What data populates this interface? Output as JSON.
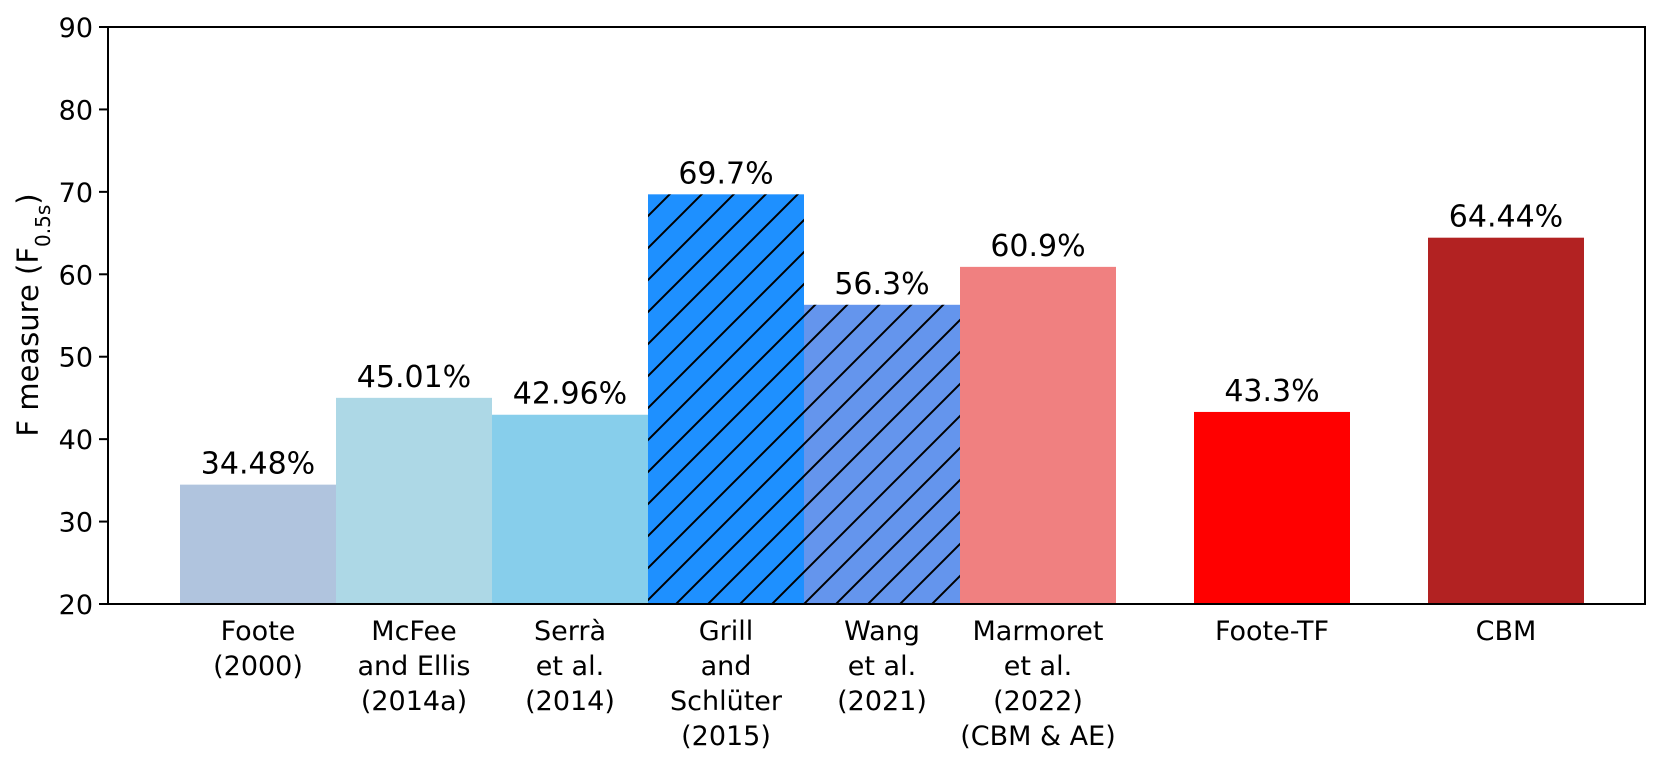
{
  "chart_data": {
    "type": "bar",
    "ylabel": "F measure (F",
    "ylabel_sub": "0.5s",
    "ylabel_close": ")",
    "ylim": [
      20,
      90
    ],
    "yticks": [
      20,
      30,
      40,
      50,
      60,
      70,
      80,
      90
    ],
    "grid": false,
    "bars": [
      {
        "lines": [
          "Foote",
          "(2000)"
        ],
        "value": 34.48,
        "label": "34.48%",
        "color": "#B0C4DE",
        "hatch": false,
        "slot": 0
      },
      {
        "lines": [
          "McFee",
          "and Ellis",
          "(2014a)"
        ],
        "value": 45.01,
        "label": "45.01%",
        "color": "#ADD8E6",
        "hatch": false,
        "slot": 1
      },
      {
        "lines": [
          "Serrà",
          "et al.",
          "(2014)"
        ],
        "value": 42.96,
        "label": "42.96%",
        "color": "#87CEEB",
        "hatch": false,
        "slot": 2
      },
      {
        "lines": [
          "Grill",
          "and",
          "Schlüter",
          "(2015)"
        ],
        "value": 69.7,
        "label": "69.7%",
        "color": "#1E90FF",
        "hatch": true,
        "slot": 3
      },
      {
        "lines": [
          "Wang",
          "et al.",
          "(2021)"
        ],
        "value": 56.3,
        "label": "56.3%",
        "color": "#6495ED",
        "hatch": true,
        "slot": 4
      },
      {
        "lines": [
          "Marmoret",
          "et al.",
          "(2022)",
          "(CBM & AE)"
        ],
        "value": 60.9,
        "label": "60.9%",
        "color": "#F08080",
        "hatch": false,
        "slot": 5
      },
      {
        "lines": [
          "Foote-TF"
        ],
        "value": 43.3,
        "label": "43.3%",
        "color": "#FF0000",
        "hatch": false,
        "slot": 6.5
      },
      {
        "lines": [
          "CBM"
        ],
        "value": 64.44,
        "label": "64.44%",
        "color": "#B22222",
        "hatch": false,
        "slot": 8
      }
    ]
  }
}
